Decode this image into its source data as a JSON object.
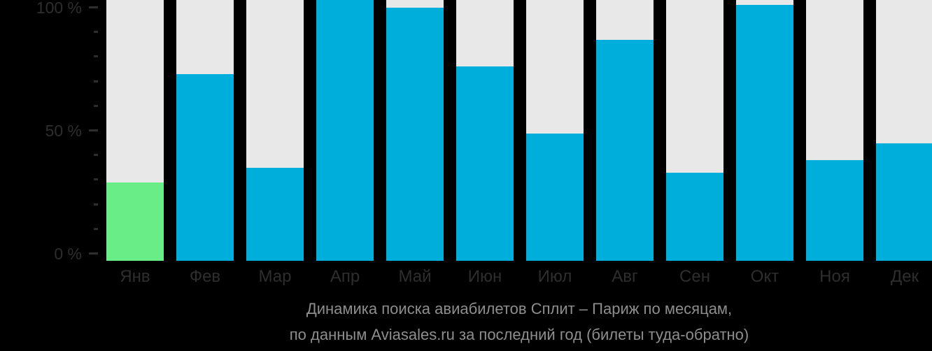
{
  "chart_data": {
    "type": "bar",
    "title": "Динамика поиска авиабилетов Сплит – Париж по месяцам,",
    "subtitle": "по данным Aviasales.ru за последний год (билеты туда-обратно)",
    "categories": [
      "Янв",
      "Фев",
      "Мар",
      "Апр",
      "Май",
      "Июн",
      "Июл",
      "Авг",
      "Сен",
      "Окт",
      "Ноя",
      "Дек"
    ],
    "values": [
      29,
      73,
      35,
      103,
      100,
      76,
      49,
      87,
      33,
      101,
      38,
      45
    ],
    "unit": "%",
    "highlighted_category": "Янв",
    "xlabel": "",
    "ylabel": "",
    "ylim": [
      0,
      103
    ],
    "grid": "off",
    "legend": "none",
    "y_ticks": [
      {
        "value": 0,
        "label": "0 %",
        "major": true
      },
      {
        "value": 10,
        "label": "",
        "major": false
      },
      {
        "value": 20,
        "label": "",
        "major": false
      },
      {
        "value": 30,
        "label": "",
        "major": false
      },
      {
        "value": 40,
        "label": "",
        "major": false
      },
      {
        "value": 50,
        "label": "50 %",
        "major": true
      },
      {
        "value": 60,
        "label": "",
        "major": false
      },
      {
        "value": 70,
        "label": "",
        "major": false
      },
      {
        "value": 80,
        "label": "",
        "major": false
      },
      {
        "value": 90,
        "label": "",
        "major": false
      },
      {
        "value": 100,
        "label": "100 %",
        "major": true
      }
    ]
  },
  "palette": {
    "background": "#000000",
    "bar": "#00AEDB",
    "bar_highlight": "#69EE87",
    "bar_track": "#E8E8E8",
    "axis_text": "#2E2E2E",
    "tick": "#2E2E2E",
    "caption_text": "#8E8E8E"
  }
}
